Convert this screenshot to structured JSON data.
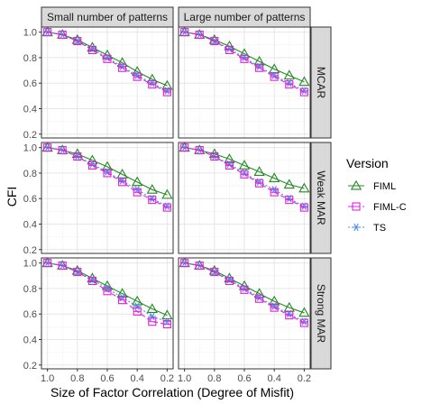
{
  "chart_data": {
    "type": "line",
    "xlabel": "Size of Factor Correlation (Degree of Misfit)",
    "ylabel": "CFI",
    "x": [
      1.0,
      0.9,
      0.8,
      0.7,
      0.6,
      0.5,
      0.4,
      0.3,
      0.2
    ],
    "x_ticks": [
      "1.0",
      "0.8",
      "0.6",
      "0.4",
      "0.2"
    ],
    "x_tick_values": [
      1.0,
      0.8,
      0.6,
      0.4,
      0.2
    ],
    "xlim": [
      1.04,
      0.16
    ],
    "x_reversed": true,
    "y_ticks": [
      "0.2",
      "0.4",
      "0.6",
      "0.8",
      "1.0"
    ],
    "y_tick_values": [
      0.2,
      0.4,
      0.6,
      0.8,
      1.0
    ],
    "ylim": [
      0.17,
      1.04
    ],
    "grid": true,
    "column_strips": [
      "Small number of patterns",
      "Large number of patterns"
    ],
    "row_strips": [
      "MCAR",
      "Weak MAR",
      "Strong MAR"
    ],
    "legend": {
      "title": "Version",
      "position": "right",
      "entries": [
        {
          "label": "FIML",
          "color": "#228B22",
          "marker": "triangle",
          "dash": "solid"
        },
        {
          "label": "FIML-C",
          "color": "#E020E0",
          "marker": "square",
          "dash": "dashed"
        },
        {
          "label": "TS",
          "color": "#4A90E2",
          "marker": "asterisk",
          "dash": "dotted"
        }
      ]
    },
    "panels": [
      {
        "row": "MCAR",
        "col": "Small number of patterns",
        "series": [
          {
            "name": "FIML",
            "values": [
              1.0,
              0.98,
              0.94,
              0.88,
              0.82,
              0.76,
              0.69,
              0.63,
              0.58
            ]
          },
          {
            "name": "FIML-C",
            "values": [
              1.0,
              0.98,
              0.93,
              0.86,
              0.79,
              0.72,
              0.65,
              0.59,
              0.53
            ]
          },
          {
            "name": "TS",
            "values": [
              1.0,
              0.98,
              0.93,
              0.87,
              0.8,
              0.73,
              0.66,
              0.6,
              0.54
            ]
          }
        ]
      },
      {
        "row": "MCAR",
        "col": "Large number of patterns",
        "series": [
          {
            "name": "FIML",
            "values": [
              1.0,
              0.98,
              0.94,
              0.89,
              0.83,
              0.77,
              0.71,
              0.66,
              0.61
            ]
          },
          {
            "name": "FIML-C",
            "values": [
              1.0,
              0.98,
              0.93,
              0.86,
              0.79,
              0.72,
              0.65,
              0.59,
              0.53
            ]
          },
          {
            "name": "TS",
            "values": [
              1.0,
              0.98,
              0.93,
              0.87,
              0.8,
              0.73,
              0.66,
              0.6,
              0.54
            ]
          }
        ]
      },
      {
        "row": "Weak MAR",
        "col": "Small number of patterns",
        "series": [
          {
            "name": "FIML",
            "values": [
              1.0,
              0.98,
              0.95,
              0.9,
              0.85,
              0.79,
              0.73,
              0.67,
              0.63
            ]
          },
          {
            "name": "FIML-C",
            "values": [
              1.0,
              0.98,
              0.93,
              0.86,
              0.8,
              0.73,
              0.65,
              0.59,
              0.53
            ]
          },
          {
            "name": "TS",
            "values": [
              1.0,
              0.98,
              0.93,
              0.87,
              0.81,
              0.74,
              0.67,
              0.6,
              0.54
            ]
          }
        ]
      },
      {
        "row": "Weak MAR",
        "col": "Large number of patterns",
        "series": [
          {
            "name": "FIML",
            "values": [
              1.0,
              0.98,
              0.95,
              0.91,
              0.86,
              0.81,
              0.76,
              0.71,
              0.68
            ]
          },
          {
            "name": "FIML-C",
            "values": [
              1.0,
              0.98,
              0.93,
              0.86,
              0.79,
              0.72,
              0.65,
              0.59,
              0.53
            ]
          },
          {
            "name": "TS",
            "values": [
              1.0,
              0.98,
              0.93,
              0.87,
              0.8,
              0.73,
              0.67,
              0.6,
              0.54
            ]
          }
        ]
      },
      {
        "row": "Strong MAR",
        "col": "Small number of patterns",
        "series": [
          {
            "name": "FIML",
            "values": [
              1.0,
              0.98,
              0.94,
              0.88,
              0.82,
              0.76,
              0.7,
              0.64,
              0.59
            ]
          },
          {
            "name": "FIML-C",
            "values": [
              1.0,
              0.98,
              0.93,
              0.86,
              0.78,
              0.71,
              0.62,
              0.54,
              0.52
            ]
          },
          {
            "name": "TS",
            "values": [
              1.0,
              0.98,
              0.93,
              0.87,
              0.8,
              0.73,
              0.66,
              0.58,
              0.54
            ]
          }
        ]
      },
      {
        "row": "Strong MAR",
        "col": "Large number of patterns",
        "series": [
          {
            "name": "FIML",
            "values": [
              1.0,
              0.98,
              0.94,
              0.88,
              0.82,
              0.76,
              0.7,
              0.65,
              0.61
            ]
          },
          {
            "name": "FIML-C",
            "values": [
              1.0,
              0.98,
              0.93,
              0.86,
              0.79,
              0.72,
              0.65,
              0.59,
              0.53
            ]
          },
          {
            "name": "TS",
            "values": [
              1.0,
              0.98,
              0.93,
              0.87,
              0.8,
              0.73,
              0.66,
              0.6,
              0.54
            ]
          }
        ]
      }
    ]
  }
}
